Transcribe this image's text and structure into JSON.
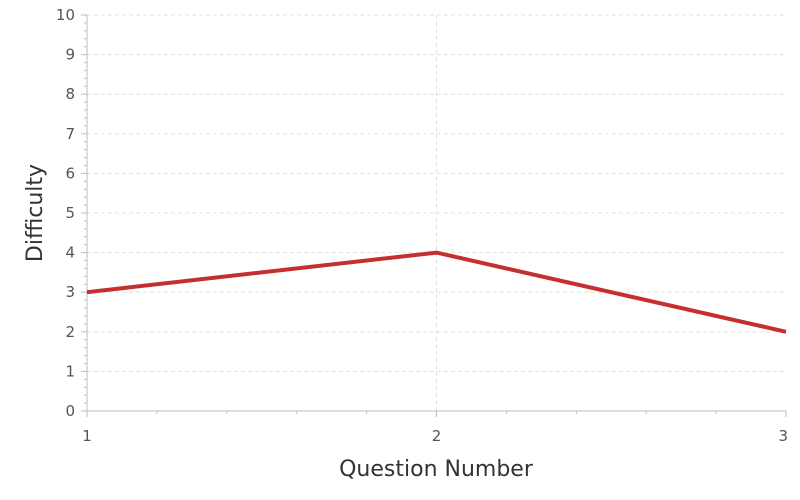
{
  "chart_data": {
    "type": "line",
    "title": "",
    "xlabel": "Question Number",
    "ylabel": "Difficulty",
    "x": [
      1,
      2,
      3
    ],
    "xticks": [
      "1",
      "2",
      "3"
    ],
    "yticks": [
      "0",
      "1",
      "2",
      "3",
      "4",
      "5",
      "6",
      "7",
      "8",
      "9",
      "10"
    ],
    "xlim": [
      1,
      3
    ],
    "ylim": [
      0,
      10
    ],
    "grid": true,
    "legend": "none",
    "series": [
      {
        "values": [
          3,
          4,
          2
        ],
        "color": "#c62f2f"
      }
    ]
  }
}
